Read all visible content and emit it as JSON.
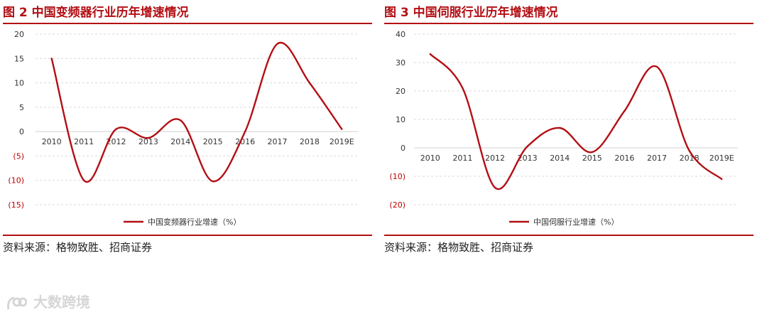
{
  "left": {
    "title": "图 2 中国变频器行业历年增速情况",
    "source": "资料来源：格物致胜、招商证券",
    "chart_data": {
      "type": "line",
      "categories": [
        "2010",
        "2011",
        "2012",
        "2013",
        "2014",
        "2015",
        "2016",
        "2017",
        "2018",
        "2019E"
      ],
      "ylim": [
        -15,
        20
      ],
      "ytick_values": [
        20,
        15,
        10,
        5,
        0,
        -5,
        -10,
        -15
      ],
      "ytick_labels": [
        "20",
        "15",
        "10",
        "5",
        "0",
        "(5)",
        "(10)",
        "(15)"
      ],
      "series": [
        {
          "name": "中国变频器行业增速（%）",
          "values": [
            15,
            -10,
            0.5,
            -1.3,
            2.3,
            -10.2,
            0,
            18,
            10,
            0.5
          ]
        }
      ],
      "legend": "bottom",
      "grid": true,
      "color": "#b30f14",
      "label_negative_color": "#c00000"
    }
  },
  "right": {
    "title": "图 3 中国伺服行业历年增速情况",
    "source": "资料来源：格物致胜、招商证券",
    "chart_data": {
      "type": "line",
      "categories": [
        "2010",
        "2011",
        "2012",
        "2013",
        "2014",
        "2015",
        "2016",
        "2017",
        "2018",
        "2019E"
      ],
      "ylim": [
        -20,
        40
      ],
      "ytick_values": [
        40,
        30,
        20,
        10,
        0,
        -10,
        -20
      ],
      "ytick_labels": [
        "40",
        "30",
        "20",
        "10",
        "0",
        "(10)",
        "(20)"
      ],
      "series": [
        {
          "name": "中国伺服行业增速（%）",
          "values": [
            33,
            21,
            -14,
            0.5,
            7,
            -1.5,
            13,
            28.5,
            -1,
            -11
          ]
        }
      ],
      "legend": "bottom",
      "grid": true,
      "color": "#b30f14",
      "label_negative_color": "#c00000"
    }
  },
  "watermark": {
    "text": "大数跨境"
  }
}
